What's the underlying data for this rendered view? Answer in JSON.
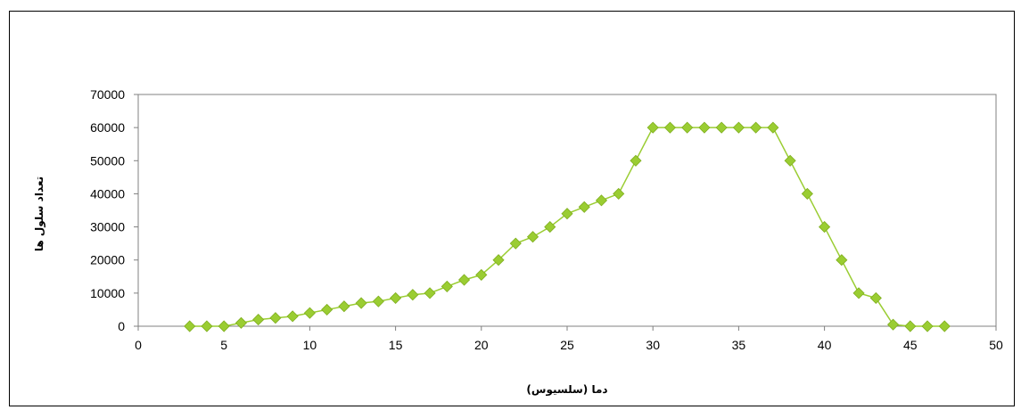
{
  "chart_data": {
    "type": "line",
    "title": "",
    "xlabel": "دما (سلسیوس)",
    "ylabel": "تعداد سلول ها",
    "xlim": [
      0,
      50
    ],
    "ylim": [
      0,
      70000
    ],
    "x_ticks": [
      0,
      5,
      10,
      15,
      20,
      25,
      30,
      35,
      40,
      45,
      50
    ],
    "y_ticks": [
      0,
      10000,
      20000,
      30000,
      40000,
      50000,
      60000,
      70000
    ],
    "grid": false,
    "legend": "none",
    "series": [
      {
        "color": "#9ACD32",
        "marker": "diamond",
        "x": [
          3,
          4,
          5,
          6,
          7,
          8,
          9,
          10,
          11,
          12,
          13,
          14,
          15,
          16,
          17,
          18,
          19,
          20,
          21,
          22,
          23,
          24,
          25,
          26,
          27,
          28,
          29,
          30,
          31,
          32,
          33,
          34,
          35,
          36,
          37,
          38,
          39,
          40,
          41,
          42,
          43,
          44,
          45,
          46,
          47
        ],
        "y": [
          0,
          0,
          0,
          1000,
          2000,
          2500,
          3000,
          4000,
          5000,
          6000,
          7000,
          7500,
          8500,
          9500,
          10000,
          12000,
          14000,
          15500,
          20000,
          25000,
          27000,
          30000,
          34000,
          36000,
          38000,
          40000,
          50000,
          60000,
          60000,
          60000,
          60000,
          60000,
          60000,
          60000,
          60000,
          50000,
          40000,
          30000,
          20000,
          10000,
          8500,
          500,
          0,
          0,
          0
        ]
      }
    ]
  }
}
